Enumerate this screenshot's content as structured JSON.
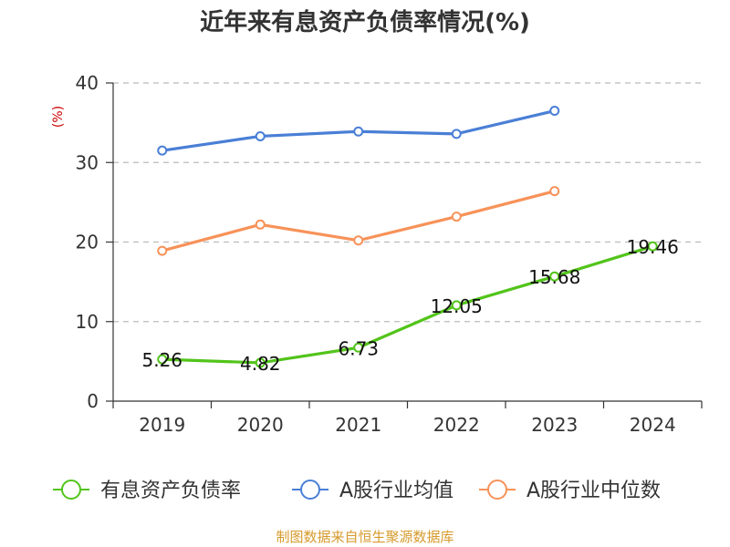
{
  "chart_data": {
    "type": "line",
    "title": "近年来有息资产负债率情况(%)",
    "ylabel": "(%)",
    "categories": [
      "2019",
      "2020",
      "2021",
      "2022",
      "2023",
      "2024"
    ],
    "ylim": [
      0,
      40
    ],
    "yticks": [
      "0",
      "10",
      "20",
      "30",
      "40"
    ],
    "grid": true,
    "legend_position": "bottom",
    "series": [
      {
        "name": "有息资产负债率",
        "color": "#52c41a",
        "values": [
          5.26,
          4.82,
          6.73,
          12.05,
          15.68,
          19.46
        ],
        "labels": [
          "5.26",
          "4.82",
          "6.73",
          "12.05",
          "15.68",
          "19.46"
        ]
      },
      {
        "name": "A股行业均值",
        "color": "#4a7fd6",
        "values": [
          31.5,
          33.3,
          33.9,
          33.6,
          36.5,
          null
        ]
      },
      {
        "name": "A股行业中位数",
        "color": "#f79259",
        "values": [
          18.9,
          22.2,
          20.2,
          23.2,
          26.4,
          null
        ]
      }
    ],
    "source": "制图数据来自恒生聚源数据库",
    "source_color": "#d69a2c",
    "unit_color": "#cc0000"
  }
}
